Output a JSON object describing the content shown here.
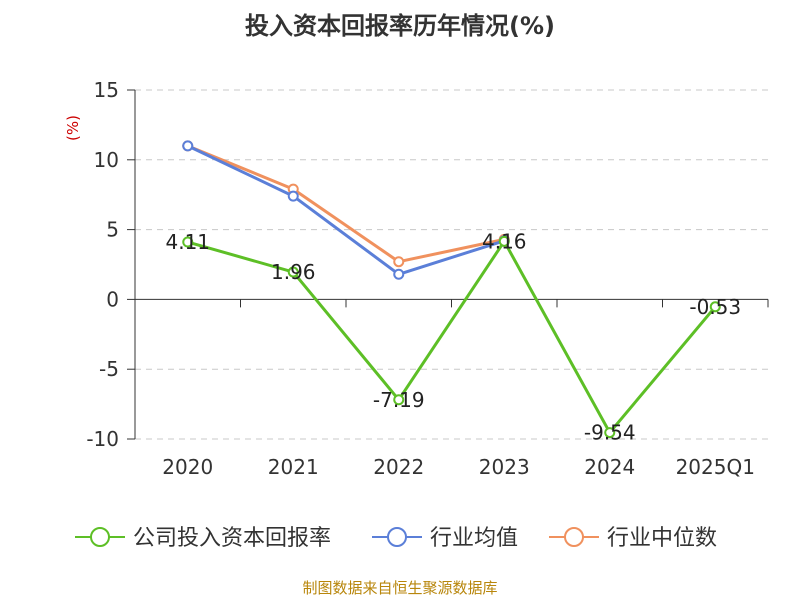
{
  "chart_data": {
    "type": "line",
    "title": "投入资本回报率历年情况(%)",
    "ylabel": "(%)",
    "categories": [
      "2020",
      "2021",
      "2022",
      "2023",
      "2024",
      "2025Q1"
    ],
    "ylim": [
      -10,
      15
    ],
    "yticks": [
      -10,
      -5,
      0,
      5,
      10,
      15
    ],
    "grid": true,
    "legend_position": "bottom",
    "series": [
      {
        "name": "公司投入资本回报率",
        "color": "#5dbf26",
        "values": [
          4.11,
          1.96,
          -7.19,
          4.16,
          -9.54,
          -0.53
        ],
        "labels": [
          "4.11",
          "1.96",
          "-7.19",
          "4.16",
          "-9.54",
          "-0.53"
        ]
      },
      {
        "name": "行业均值",
        "color": "#5b7fd8",
        "values": [
          11.0,
          7.4,
          1.8,
          4.2,
          null,
          null
        ]
      },
      {
        "name": "行业中位数",
        "color": "#f0915e",
        "values": [
          11.0,
          7.9,
          2.7,
          4.3,
          null,
          null
        ]
      }
    ]
  },
  "source_note": "制图数据来自恒生聚源数据库"
}
